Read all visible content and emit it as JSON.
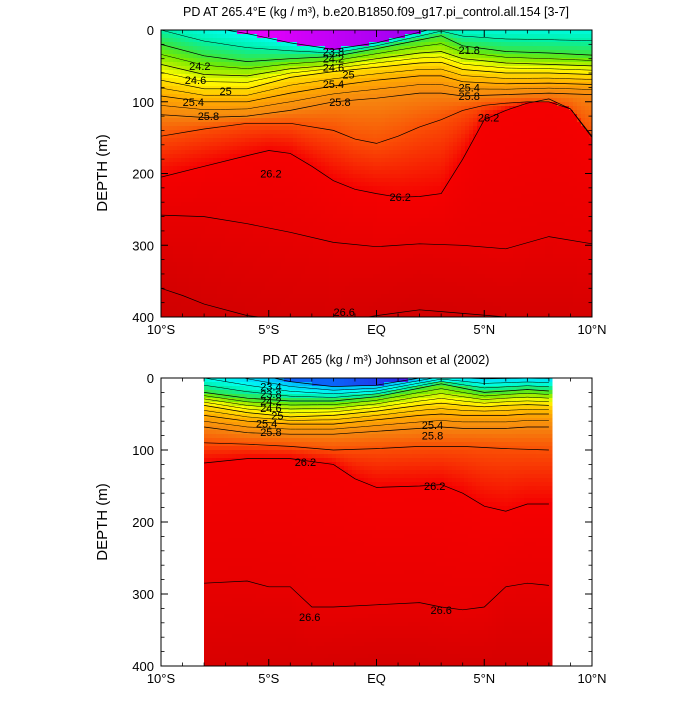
{
  "chart_data": [
    {
      "type": "contour",
      "title": "PD AT 265.4°E (kg / m³), b.e20.B1850.f09_g17.pi_control.all.154 [3-7]",
      "ylabel": "DEPTH (m)",
      "xlabel": "",
      "x_ticks": [
        "10°S",
        "5°S",
        "EQ",
        "5°N",
        "10°N"
      ],
      "x_tick_values": [
        -10,
        -5,
        0,
        5,
        10
      ],
      "y_ticks": [
        "0",
        "100",
        "200",
        "300",
        "400"
      ],
      "y_tick_values": [
        0,
        100,
        200,
        300,
        400
      ],
      "xlim": [
        -10,
        10
      ],
      "ylim": [
        0,
        400
      ],
      "y_inverted": true,
      "data_xlim": [
        -10,
        10
      ],
      "contour_interval": 0.2,
      "contour_labels": [
        {
          "text": "23.8",
          "x": -2.0,
          "y": 30
        },
        {
          "text": "24.2",
          "x": -2.0,
          "y": 40
        },
        {
          "text": "24.6",
          "x": -2.0,
          "y": 52
        },
        {
          "text": "25",
          "x": -1.3,
          "y": 62
        },
        {
          "text": "25.4",
          "x": -2.0,
          "y": 75
        },
        {
          "text": "25.8",
          "x": -1.7,
          "y": 100
        },
        {
          "text": "24.2",
          "x": -8.2,
          "y": 50
        },
        {
          "text": "24.6",
          "x": -8.4,
          "y": 70
        },
        {
          "text": "25",
          "x": -7.0,
          "y": 85
        },
        {
          "text": "25.4",
          "x": -8.5,
          "y": 100
        },
        {
          "text": "25.8",
          "x": -7.8,
          "y": 120
        },
        {
          "text": "21.8",
          "x": 4.3,
          "y": 28
        },
        {
          "text": "25.4",
          "x": 4.3,
          "y": 80
        },
        {
          "text": "25.8",
          "x": 4.3,
          "y": 92
        },
        {
          "text": "26.2",
          "x": 5.2,
          "y": 122
        },
        {
          "text": "26.2",
          "x": -4.9,
          "y": 200
        },
        {
          "text": "26.2",
          "x": 1.1,
          "y": 233
        },
        {
          "text": "26.6",
          "x": -1.5,
          "y": 393
        }
      ]
    },
    {
      "type": "contour",
      "title": "PD AT 265 (kg / m³) Johnson et al (2002)",
      "ylabel": "DEPTH (m)",
      "xlabel": "",
      "x_ticks": [
        "10°S",
        "5°S",
        "EQ",
        "5°N",
        "10°N"
      ],
      "x_tick_values": [
        -10,
        -5,
        0,
        5,
        10
      ],
      "y_ticks": [
        "0",
        "100",
        "200",
        "300",
        "400"
      ],
      "y_tick_values": [
        0,
        100,
        200,
        300,
        400
      ],
      "xlim": [
        -10,
        10
      ],
      "ylim": [
        0,
        400
      ],
      "y_inverted": true,
      "data_xlim": [
        -8,
        8
      ],
      "contour_interval": 0.2,
      "contour_labels": [
        {
          "text": "23.4",
          "x": -4.9,
          "y": 12
        },
        {
          "text": "23.8",
          "x": -4.9,
          "y": 22
        },
        {
          "text": "24.2",
          "x": -4.9,
          "y": 32
        },
        {
          "text": "24.6",
          "x": -4.9,
          "y": 42
        },
        {
          "text": "25",
          "x": -4.6,
          "y": 52
        },
        {
          "text": "25.4",
          "x": -5.1,
          "y": 63
        },
        {
          "text": "25.8",
          "x": -4.9,
          "y": 75
        },
        {
          "text": "25.4",
          "x": 2.6,
          "y": 65
        },
        {
          "text": "25.8",
          "x": 2.6,
          "y": 80
        },
        {
          "text": "26.2",
          "x": -3.3,
          "y": 117
        },
        {
          "text": "26.2",
          "x": 2.7,
          "y": 150
        },
        {
          "text": "26.6",
          "x": -3.1,
          "y": 332
        },
        {
          "text": "26.6",
          "x": 3.0,
          "y": 322
        }
      ]
    }
  ]
}
